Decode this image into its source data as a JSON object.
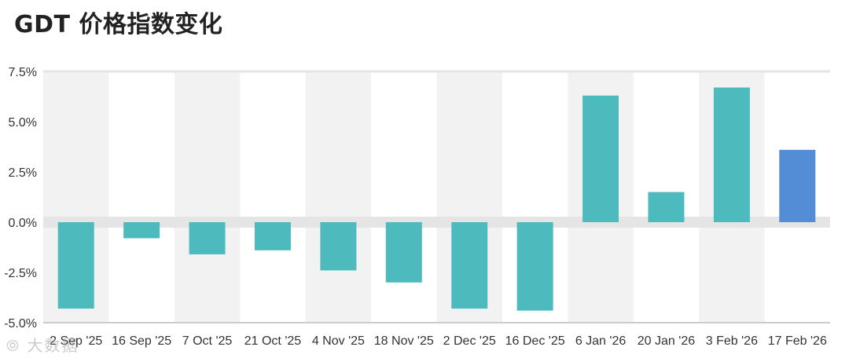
{
  "title": "GDT 价格指数变化",
  "watermark": "⦾ 大数据",
  "colors": {
    "bar": "#4dbbbd",
    "highlight": "#528dd6",
    "column_band": "#f2f2f2",
    "zero_band": "#e5e5e5",
    "axis": "#cccccc"
  },
  "chart_data": {
    "type": "bar",
    "categories": [
      "2 Sep '25",
      "16 Sep '25",
      "7 Oct '25",
      "21 Oct '25",
      "4 Nov '25",
      "18 Nov '25",
      "2 Dec '25",
      "16 Dec '25",
      "6 Jan '26",
      "20 Jan '26",
      "3 Feb '26",
      "17 Feb '26"
    ],
    "values": [
      -4.3,
      -0.8,
      -1.6,
      -1.4,
      -2.4,
      -3.0,
      -4.3,
      -4.4,
      6.3,
      1.5,
      6.7,
      3.6
    ],
    "highlight_index": 11,
    "ylim": [
      -5.0,
      7.5
    ],
    "yticks": [
      7.5,
      5.0,
      2.5,
      0.0,
      -2.5,
      -5.0
    ],
    "ytick_labels": [
      "7.5%",
      "5.0%",
      "2.5%",
      "0.0%",
      "-2.5%",
      "-5.0%"
    ],
    "xlabel": "",
    "ylabel": ""
  }
}
